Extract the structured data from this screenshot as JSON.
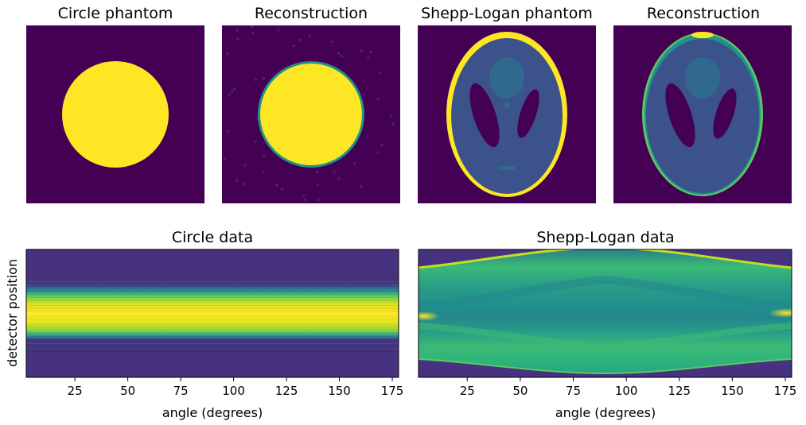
{
  "figure": {
    "panels": [
      {
        "id": "circle-phantom",
        "title": "Circle phantom"
      },
      {
        "id": "circle-reconstruction",
        "title": "Reconstruction"
      },
      {
        "id": "shepp-logan-phantom",
        "title": "Shepp-Logan phantom"
      },
      {
        "id": "shepp-logan-reconstruction",
        "title": "Reconstruction"
      }
    ],
    "colormap": [
      "#440154",
      "#3b528b",
      "#21918c",
      "#5ec962",
      "#fde725"
    ]
  },
  "chart_data": [
    {
      "type": "heatmap",
      "title": "Circle data",
      "xlabel": "angle (degrees)",
      "ylabel": "detector position",
      "xlim": [
        2,
        178
      ],
      "xticks": [
        25,
        50,
        75,
        100,
        125,
        150,
        175
      ],
      "description_values": {
        "band_profile": "uniform across angles, bright central band"
      }
    },
    {
      "type": "heatmap",
      "title": "Shepp-Logan data",
      "xlabel": "angle (degrees)",
      "ylabel": "",
      "xlim": [
        2,
        178
      ],
      "xticks": [
        25,
        50,
        75,
        100,
        125,
        150,
        175
      ]
    }
  ]
}
